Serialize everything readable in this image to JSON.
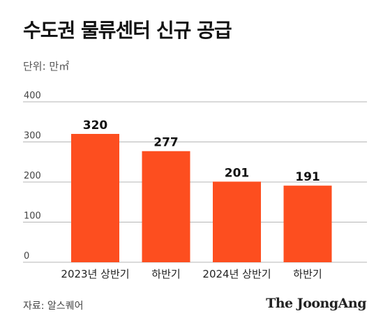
{
  "title": "수도권 물류센터 신규 공급",
  "unit_label": "단위: 만㎡",
  "source": "자료: 알스퀘어",
  "brand": "The JoongAng",
  "colors": {
    "bar": "#fd4e1f",
    "grid": "#b5b5b5",
    "axis_text": "#444444",
    "value_text": "#111111"
  },
  "chart_data": {
    "type": "bar",
    "title": "수도권 물류센터 신규 공급",
    "xlabel": "",
    "ylabel": "",
    "unit": "만㎡",
    "categories": [
      "2023년 상반기",
      "하반기",
      "2024년 상반기",
      "하반기"
    ],
    "values": [
      320,
      277,
      201,
      191
    ],
    "yticks": [
      0,
      100,
      200,
      300,
      400
    ],
    "ylim": [
      0,
      400
    ],
    "grid": true,
    "legend": "none"
  }
}
